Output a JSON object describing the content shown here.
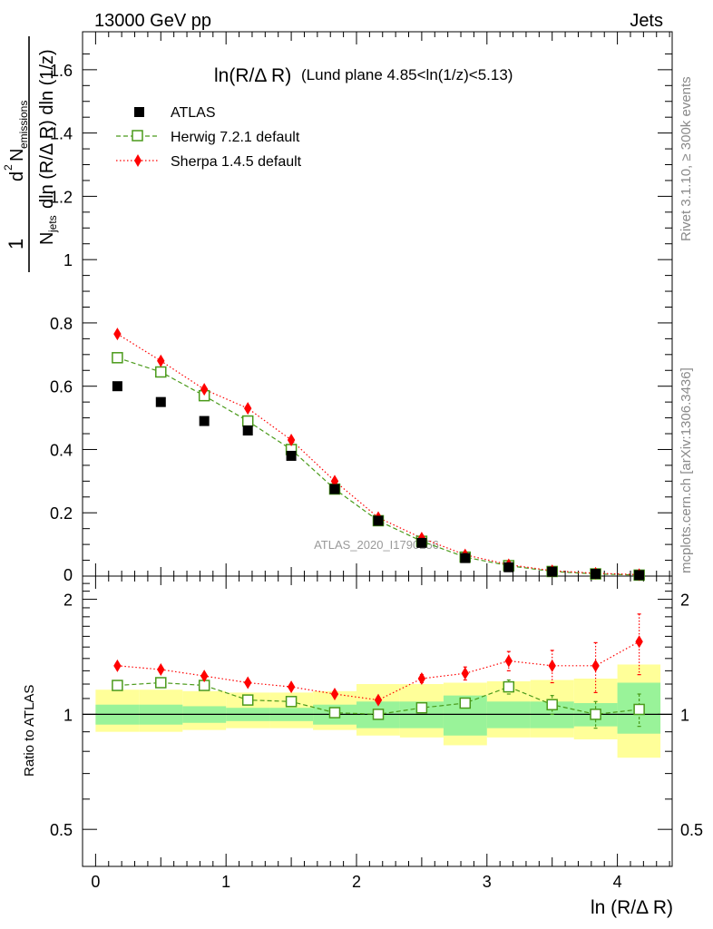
{
  "header": {
    "energy_label": "13000 GeV pp",
    "process_label": "Jets"
  },
  "side": {
    "rivet_label": "Rivet 3.1.10, ≥ 300k events",
    "mcplots_label": "mcplots.cern.ch [arXiv:1306.3436]"
  },
  "watermark": "ATLAS_2020_I1790256",
  "chart_data": {
    "type": "scatter",
    "title_main": "ln(R/Δ R)",
    "title_sub": "(Lund plane 4.85<ln(1/z)<5.13)",
    "ylabel_parts": {
      "one": "1",
      "n_jets": "N",
      "jets_sub": "jets",
      "dln": "dln (R/Δ R) dln (1/z)",
      "d2": "d",
      "two": "2",
      "n_em": "N",
      "em_sub": "emissions"
    },
    "xlabel": "ln (R/Δ R)",
    "ratio_ylabel": "Ratio to ATLAS",
    "xlim": [
      -0.1,
      4.42
    ],
    "ylim": [
      0,
      1.72
    ],
    "ratio_ylim": [
      0.4,
      2.3
    ],
    "x_ticks": [
      0,
      1,
      2,
      3,
      4
    ],
    "y_ticks": [
      0.2,
      0.4,
      0.6,
      0.8,
      1,
      1.2,
      1.4,
      1.6
    ],
    "y_zero_label": "0",
    "ratio_ticks": [
      0.5,
      1,
      2
    ],
    "bin_edges": [
      0,
      0.333,
      0.667,
      1.0,
      1.333,
      1.667,
      2.0,
      2.333,
      2.667,
      3.0,
      3.333,
      3.667,
      4.0,
      4.33
    ],
    "x": [
      0.167,
      0.5,
      0.833,
      1.167,
      1.5,
      1.833,
      2.167,
      2.5,
      2.833,
      3.167,
      3.5,
      3.833,
      4.167
    ],
    "legend": [
      {
        "name": "ATLAS",
        "marker": "square",
        "color": "#000000"
      },
      {
        "name": "Herwig 7.2.1 default",
        "marker": "open-square",
        "color": "#4a9a1a"
      },
      {
        "name": "Sherpa 1.4.5 default",
        "marker": "diamond",
        "color": "#ff0000"
      }
    ],
    "series": [
      {
        "name": "ATLAS",
        "values": [
          0.6,
          0.55,
          0.49,
          0.46,
          0.38,
          0.275,
          0.175,
          0.105,
          0.057,
          0.028,
          0.014,
          0.007,
          0.003
        ]
      },
      {
        "name": "Herwig 7.2.1 default",
        "values": [
          0.69,
          0.645,
          0.57,
          0.49,
          0.4,
          0.275,
          0.175,
          0.11,
          0.06,
          0.033,
          0.0145,
          0.007,
          0.0031
        ]
      },
      {
        "name": "Sherpa 1.4.5 default",
        "values": [
          0.765,
          0.68,
          0.59,
          0.53,
          0.43,
          0.3,
          0.185,
          0.12,
          0.067,
          0.036,
          0.017,
          0.009,
          0.0045
        ]
      }
    ],
    "ratio_series": [
      {
        "name": "Herwig 7.2.1 default",
        "values": [
          1.19,
          1.21,
          1.19,
          1.09,
          1.08,
          1.01,
          1.0,
          1.04,
          1.07,
          1.18,
          1.06,
          1.0,
          1.03
        ],
        "errors": [
          0.005,
          0.005,
          0.005,
          0.006,
          0.006,
          0.01,
          0.012,
          0.02,
          0.03,
          0.05,
          0.06,
          0.08,
          0.1
        ]
      },
      {
        "name": "Sherpa 1.4.5 default",
        "values": [
          1.34,
          1.31,
          1.26,
          1.21,
          1.18,
          1.13,
          1.09,
          1.24,
          1.28,
          1.38,
          1.34,
          1.34,
          1.55
        ],
        "errors": [
          0.005,
          0.006,
          0.006,
          0.008,
          0.01,
          0.015,
          0.02,
          0.03,
          0.05,
          0.08,
          0.13,
          0.2,
          0.28
        ]
      }
    ],
    "ratio_band_inner": [
      [
        0.94,
        1.06
      ],
      [
        0.94,
        1.06
      ],
      [
        0.95,
        1.05
      ],
      [
        0.96,
        1.04
      ],
      [
        0.96,
        1.04
      ],
      [
        0.94,
        1.06
      ],
      [
        0.92,
        1.08
      ],
      [
        0.92,
        1.08
      ],
      [
        0.88,
        1.12
      ],
      [
        0.92,
        1.08
      ],
      [
        0.92,
        1.08
      ],
      [
        0.93,
        1.07
      ],
      [
        0.89,
        1.21
      ]
    ],
    "ratio_band_outer": [
      [
        0.9,
        1.16
      ],
      [
        0.9,
        1.16
      ],
      [
        0.91,
        1.15
      ],
      [
        0.92,
        1.14
      ],
      [
        0.92,
        1.14
      ],
      [
        0.91,
        1.15
      ],
      [
        0.88,
        1.2
      ],
      [
        0.87,
        1.2
      ],
      [
        0.83,
        1.21
      ],
      [
        0.87,
        1.22
      ],
      [
        0.87,
        1.23
      ],
      [
        0.86,
        1.24
      ],
      [
        0.77,
        1.35
      ]
    ]
  }
}
